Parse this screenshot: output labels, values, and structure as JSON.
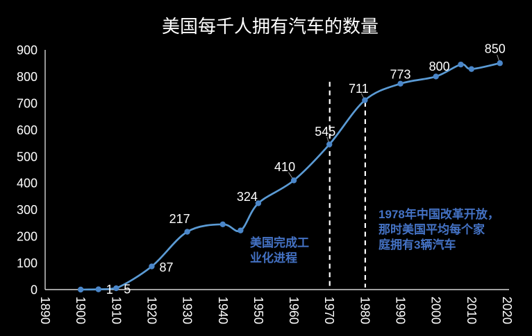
{
  "chart_data": {
    "type": "line",
    "title": "美国每千人拥有汽车的数量",
    "xlabel": "",
    "ylabel": "",
    "xlim": [
      1890,
      2020
    ],
    "ylim": [
      0,
      900
    ],
    "x_ticks": [
      1890,
      1900,
      1910,
      1920,
      1930,
      1940,
      1950,
      1960,
      1970,
      1980,
      1990,
      2000,
      2010,
      2020
    ],
    "x_tick_rotation_deg": 90,
    "y_ticks": [
      0,
      100,
      200,
      300,
      400,
      500,
      600,
      700,
      800,
      900
    ],
    "grid": false,
    "legend": false,
    "smooth_line": true,
    "colors": {
      "background": "#000000",
      "line": "#5B9BD5",
      "marker": "#4A86C9",
      "data_label": "#FFFFFF",
      "axis": "#D6D6D6",
      "tick_label": "#FFFFFF",
      "title": "#FFFFFF",
      "reference_line": "#FFFFFF",
      "leader_line": "#9A9A9A",
      "annotation": "#4472C4"
    },
    "series": [
      {
        "name": "美国每千人拥有汽车的数量",
        "points": [
          {
            "year": 1900,
            "value": 0,
            "label": ""
          },
          {
            "year": 1905,
            "value": 1,
            "label": "1",
            "label_dx": 16,
            "label_dy": 0
          },
          {
            "year": 1910,
            "value": 5,
            "label": "5",
            "label_dx": 16,
            "label_dy": 1
          },
          {
            "year": 1920,
            "value": 87,
            "label": "87",
            "label_dx": 21,
            "label_dy": 1
          },
          {
            "year": 1930,
            "value": 217,
            "label": "217",
            "label_dx": -11,
            "label_dy": -19
          },
          {
            "year": 1940,
            "value": 245,
            "label": ""
          },
          {
            "year": 1945,
            "value": 222,
            "label": ""
          },
          {
            "year": 1950,
            "value": 324,
            "label": "324",
            "label_dx": -16,
            "label_dy": -10
          },
          {
            "year": 1960,
            "value": 410,
            "label": "410",
            "label_dx": -13,
            "label_dy": -20,
            "leader": true
          },
          {
            "year": 1970,
            "value": 545,
            "label": "545",
            "label_dx": -6,
            "label_dy": -19,
            "leader": true
          },
          {
            "year": 1980,
            "value": 711,
            "label": "711",
            "label_dx": -9,
            "label_dy": -17,
            "leader": true
          },
          {
            "year": 1990,
            "value": 773,
            "label": "773",
            "label_dx": 0,
            "label_dy": -14
          },
          {
            "year": 2000,
            "value": 800,
            "label": "800",
            "label_dx": 5,
            "label_dy": -15
          },
          {
            "year": 2007,
            "value": 845,
            "label": ""
          },
          {
            "year": 2010,
            "value": 828,
            "label": ""
          },
          {
            "year": 2018,
            "value": 850,
            "label": "850",
            "label_dx": -7,
            "label_dy": -21,
            "leader": true
          }
        ]
      }
    ],
    "reference_lines": [
      {
        "x": 1970,
        "value_top": 780,
        "style": "dashed"
      },
      {
        "x": 1980,
        "value_top": 705,
        "style": "dashed"
      }
    ]
  },
  "annotations": {
    "industrialization": {
      "text": "美国完成工\n业化进程"
    },
    "reform": {
      "text": "1978年中国改革开放，\n那时美国平均每个家\n庭拥有3辆汽车"
    }
  }
}
